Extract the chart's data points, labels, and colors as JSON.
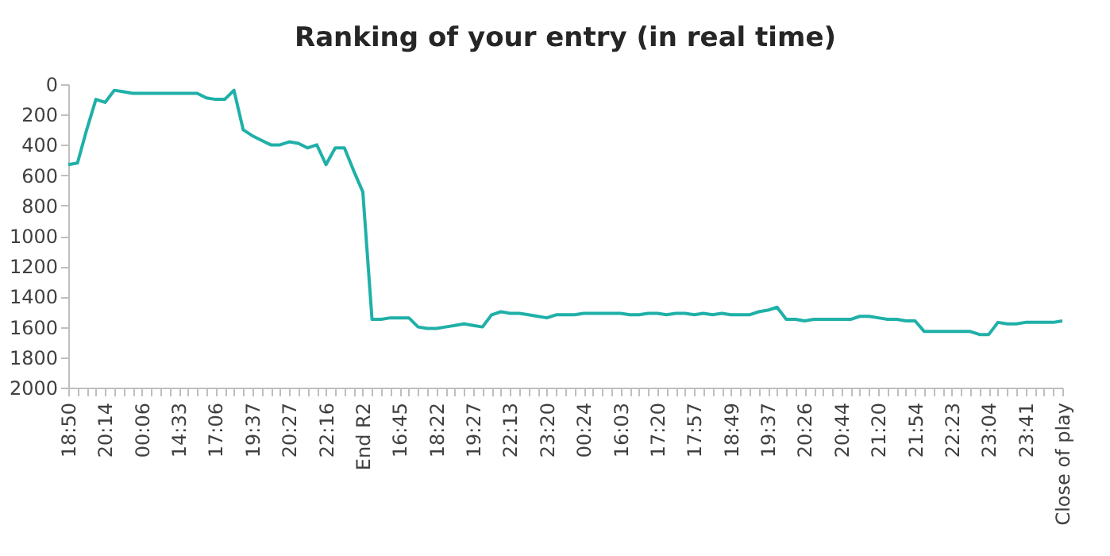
{
  "chart_data": {
    "type": "line",
    "title": "Ranking of your entry (in real time)",
    "categories": [
      "18:50",
      null,
      null,
      null,
      "20:14",
      null,
      null,
      null,
      "00:06",
      null,
      null,
      null,
      "14:33",
      null,
      null,
      null,
      "17:06",
      null,
      null,
      null,
      "19:37",
      null,
      null,
      null,
      "20:27",
      null,
      null,
      null,
      "22:16",
      null,
      null,
      null,
      "End R2",
      null,
      null,
      null,
      "16:45",
      null,
      null,
      null,
      "18:22",
      null,
      null,
      null,
      "19:27",
      null,
      null,
      null,
      "22:13",
      null,
      null,
      null,
      "23:20",
      null,
      null,
      null,
      "00:24",
      null,
      null,
      null,
      "16:03",
      null,
      null,
      null,
      "17:20",
      null,
      null,
      null,
      "17:57",
      null,
      null,
      null,
      "18:49",
      null,
      null,
      null,
      "19:37",
      null,
      null,
      null,
      "20:26",
      null,
      null,
      null,
      "20:44",
      null,
      null,
      null,
      "21:20",
      null,
      null,
      null,
      "21:54",
      null,
      null,
      null,
      "22:23",
      null,
      null,
      null,
      "23:04",
      null,
      null,
      null,
      "23:41",
      null,
      null,
      null,
      "Close of play"
    ],
    "series": [
      {
        "color": "#1fb0a8",
        "values": [
          530,
          520,
          300,
          100,
          120,
          40,
          50,
          60,
          60,
          60,
          60,
          60,
          60,
          60,
          60,
          90,
          100,
          100,
          40,
          300,
          340,
          370,
          400,
          400,
          380,
          390,
          420,
          400,
          530,
          420,
          420,
          570,
          710,
          1550,
          1550,
          1540,
          1540,
          1540,
          1600,
          1610,
          1610,
          1600,
          1590,
          1580,
          1590,
          1600,
          1520,
          1500,
          1510,
          1510,
          1520,
          1530,
          1540,
          1520,
          1520,
          1520,
          1510,
          1510,
          1510,
          1510,
          1510,
          1520,
          1520,
          1510,
          1510,
          1520,
          1510,
          1510,
          1520,
          1510,
          1520,
          1510,
          1520,
          1520,
          1520,
          1500,
          1490,
          1470,
          1550,
          1550,
          1560,
          1550,
          1550,
          1550,
          1550,
          1550,
          1530,
          1530,
          1540,
          1550,
          1550,
          1560,
          1560,
          1630,
          1630,
          1630,
          1630,
          1630,
          1630,
          1650,
          1650,
          1570,
          1580,
          1580,
          1570,
          1570,
          1570,
          1570,
          1560
        ]
      }
    ],
    "ylim": [
      2000,
      0
    ],
    "yticks": [
      0,
      200,
      400,
      600,
      800,
      1000,
      1200,
      1400,
      1600,
      1800,
      2000
    ],
    "grid": false,
    "line_style": "solid"
  }
}
